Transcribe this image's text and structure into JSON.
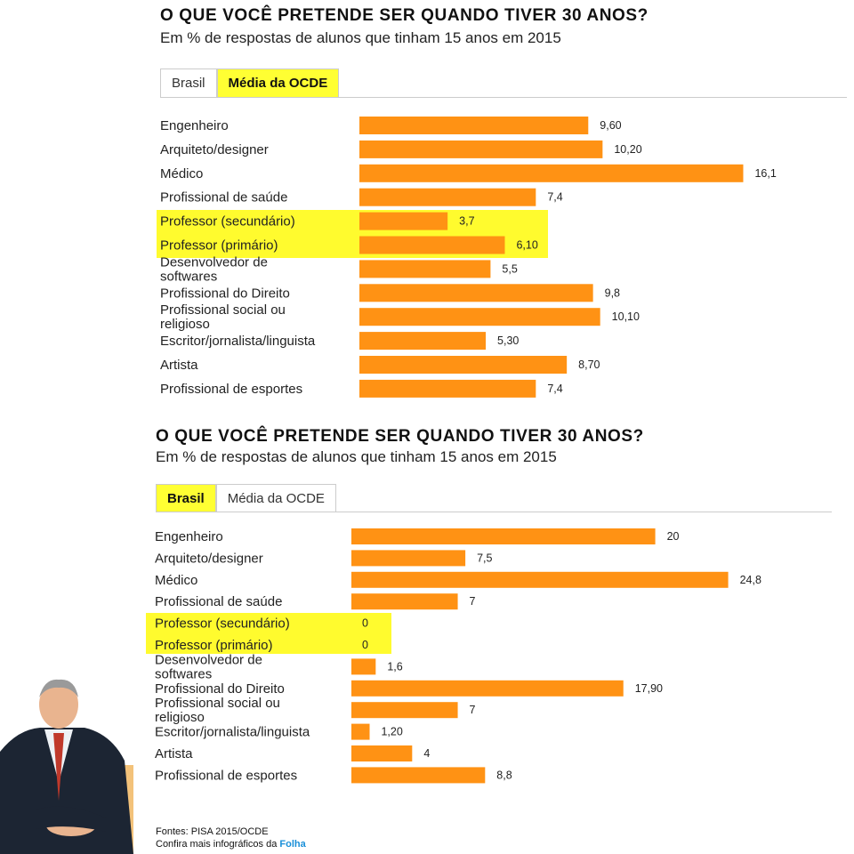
{
  "charts": [
    {
      "title": "O QUE VOCÊ PRETENDE SER QUANDO TIVER 30 ANOS?",
      "subtitle": "Em % de respostas de alunos que tinham 15 anos em 2015",
      "tabs": [
        {
          "label": "Brasil",
          "active": false
        },
        {
          "label": "Média da OCDE",
          "active": true
        }
      ]
    },
    {
      "title": "O QUE VOCÊ PRETENDE SER QUANDO TIVER 30 ANOS?",
      "subtitle": "Em % de respostas de alunos que tinham 15 anos em 2015",
      "tabs": [
        {
          "label": "Brasil",
          "active": true
        },
        {
          "label": "Média da OCDE",
          "active": false
        }
      ]
    }
  ],
  "chart_data": [
    {
      "type": "bar",
      "orientation": "horizontal",
      "title": "O QUE VOCÊ PRETENDE SER QUANDO TIVER 30 ANOS?",
      "subtitle": "Em % de respostas de alunos que tinham 15 anos em 2015",
      "selected_tab": "Média da OCDE",
      "categories": [
        [
          "Engenheiro"
        ],
        [
          "Arquiteto/designer"
        ],
        [
          "Médico"
        ],
        [
          "Profissional de saúde"
        ],
        [
          "Professor (secundário)"
        ],
        [
          "Professor (primário)"
        ],
        [
          "Desenvolvedor de",
          "softwares"
        ],
        [
          "Profissional do Direito"
        ],
        [
          "Profissional social ou",
          "religioso"
        ],
        [
          "Escritor/jornalista/linguista"
        ],
        [
          "Artista"
        ],
        [
          "Profissional de esportes"
        ]
      ],
      "values": [
        9.6,
        10.2,
        16.1,
        7.4,
        3.7,
        6.1,
        5.5,
        9.8,
        10.1,
        5.3,
        8.7,
        7.4
      ],
      "value_labels": [
        "9,60",
        "10,20",
        "16,1",
        "7,4",
        "3,7",
        "6,10",
        "5,5",
        "9,8",
        "10,10",
        "5,30",
        "8,70",
        "7,4"
      ],
      "highlighted": [
        "Professor (secundário)",
        "Professor (primário)"
      ],
      "bar_color": "#ff9214",
      "highlight_color": "#fffb2e"
    },
    {
      "type": "bar",
      "orientation": "horizontal",
      "title": "O QUE VOCÊ PRETENDE SER QUANDO TIVER 30 ANOS?",
      "subtitle": "Em % de respostas de alunos que tinham 15 anos em 2015",
      "selected_tab": "Brasil",
      "categories": [
        [
          "Engenheiro"
        ],
        [
          "Arquiteto/designer"
        ],
        [
          "Médico"
        ],
        [
          "Profissional de saúde"
        ],
        [
          "Professor (secundário)"
        ],
        [
          "Professor (primário)"
        ],
        [
          "Desenvolvedor de",
          "softwares"
        ],
        [
          "Profissional do Direito"
        ],
        [
          "Profissional social ou",
          "religioso"
        ],
        [
          "Escritor/jornalista/linguista"
        ],
        [
          "Artista"
        ],
        [
          "Profissional de esportes"
        ]
      ],
      "values": [
        20,
        7.5,
        24.8,
        7,
        0,
        0,
        1.6,
        17.9,
        7,
        1.2,
        4,
        8.8
      ],
      "value_labels": [
        "20",
        "7,5",
        "24,8",
        "7",
        "0",
        "0",
        "1,6",
        "17,90",
        "7",
        "1,20",
        "4",
        "8,8"
      ],
      "highlighted": [
        "Professor (secundário)",
        "Professor (primário)"
      ],
      "bar_color": "#ff9214",
      "highlight_color": "#fffb2e"
    }
  ],
  "footer": {
    "sources": "Fontes: PISA 2015/OCDE",
    "more_prefix": "Confira mais infográficos da ",
    "brand": "Folha"
  },
  "photo": {
    "icon": "person-portrait-icon"
  }
}
